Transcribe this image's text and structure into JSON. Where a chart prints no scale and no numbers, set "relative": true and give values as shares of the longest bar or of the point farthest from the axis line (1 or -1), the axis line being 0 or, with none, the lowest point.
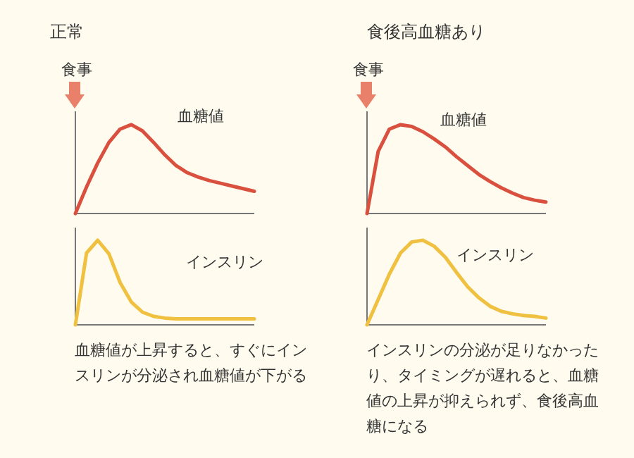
{
  "chart_data": [
    {
      "type": "line",
      "title": "正常",
      "annotations": [
        "食事"
      ],
      "relative": true,
      "categories": [
        null,
        null,
        null,
        null,
        null,
        null,
        null,
        null,
        null,
        null,
        null,
        null,
        null,
        null,
        null,
        null,
        null
      ],
      "series": [
        {
          "name": "血糖値",
          "color": "#d9503f",
          "values": [
            0,
            0.3,
            0.57,
            0.8,
            0.95,
            1.0,
            0.93,
            0.8,
            0.66,
            0.54,
            0.46,
            0.41,
            0.37,
            0.34,
            0.31,
            0.28,
            0.25
          ]
        }
      ]
    },
    {
      "type": "line",
      "title": "食後高血糖あり",
      "annotations": [
        "食事"
      ],
      "relative": true,
      "categories": [
        null,
        null,
        null,
        null,
        null,
        null,
        null,
        null,
        null,
        null,
        null,
        null,
        null,
        null,
        null,
        null,
        null
      ],
      "series": [
        {
          "name": "血糖値",
          "color": "#d9503f",
          "values": [
            0,
            0.7,
            0.95,
            1.0,
            0.98,
            0.92,
            0.84,
            0.75,
            0.64,
            0.54,
            0.44,
            0.36,
            0.29,
            0.23,
            0.18,
            0.15,
            0.13
          ]
        }
      ]
    },
    {
      "type": "line",
      "annotations": [
        "血糖値が上昇すると、すぐにインスリンが分泌され血糖値が下がる"
      ],
      "relative": true,
      "categories": [
        null,
        null,
        null,
        null,
        null,
        null,
        null,
        null,
        null,
        null,
        null,
        null,
        null,
        null,
        null,
        null,
        null
      ],
      "series": [
        {
          "name": "インスリン",
          "color": "#f0c040",
          "values": [
            0,
            0.85,
            1.0,
            0.84,
            0.5,
            0.27,
            0.15,
            0.1,
            0.08,
            0.07,
            0.07,
            0.07,
            0.07,
            0.07,
            0.07,
            0.07,
            0.07
          ]
        }
      ]
    },
    {
      "type": "line",
      "annotations": [
        "インスリンの分泌が足りなかったり、タイミングが遅れると、血糖値の上昇が抑えられず、食後高血糖になる"
      ],
      "relative": true,
      "categories": [
        null,
        null,
        null,
        null,
        null,
        null,
        null,
        null,
        null,
        null,
        null,
        null,
        null,
        null,
        null,
        null,
        null
      ],
      "series": [
        {
          "name": "インスリン",
          "color": "#f0c040",
          "values": [
            0,
            0.3,
            0.6,
            0.85,
            0.98,
            1.0,
            0.93,
            0.8,
            0.62,
            0.45,
            0.32,
            0.22,
            0.16,
            0.13,
            0.11,
            0.1,
            0.08
          ]
        }
      ]
    }
  ]
}
